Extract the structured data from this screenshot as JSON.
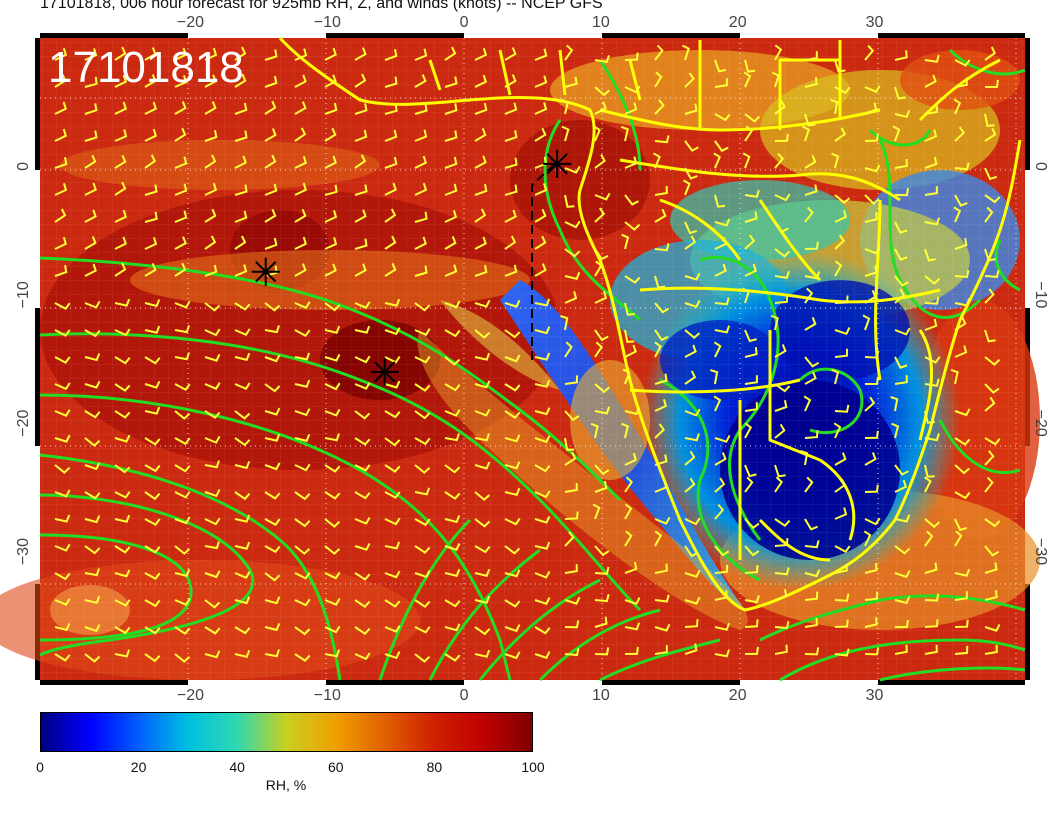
{
  "title": "17101818, 006 hour forecast for 925mb RH, Z, and winds (knots) -- NCEP GFS",
  "stamp": "17101818",
  "map": {
    "lon_range": [
      -31,
      41
    ],
    "lat_range": [
      -40,
      10
    ],
    "lon_ticks": [
      -20,
      -10,
      0,
      10,
      20,
      30
    ],
    "lat_ticks": [
      0,
      -10,
      -20,
      -30
    ],
    "lon_tick_labels": [
      "−20",
      "−10",
      "0",
      "10",
      "20",
      "30"
    ],
    "lat_tick_labels": [
      "0",
      "−10",
      "−20",
      "−30"
    ],
    "markers": [
      {
        "lon": -14.5,
        "lat": -8.2,
        "symbol": "asterisk"
      },
      {
        "lon": -5.8,
        "lat": -16.0,
        "symbol": "asterisk"
      },
      {
        "lon": 6.8,
        "lat": 0.2,
        "symbol": "asterisk"
      }
    ]
  },
  "colorbar": {
    "title": "RH, %",
    "min": 0,
    "max": 100,
    "tick_values": [
      0,
      20,
      40,
      60,
      80,
      100
    ],
    "tick_labels": [
      "0",
      "20",
      "40",
      "60",
      "80",
      "100"
    ],
    "colors": [
      "#000080",
      "#0000ff",
      "#0060ff",
      "#00c0e0",
      "#30d8b0",
      "#c8d020",
      "#f0a000",
      "#e06000",
      "#d02000",
      "#c00000",
      "#800000"
    ]
  },
  "colors": {
    "contour": "#22dd22",
    "coastline": "#ffff00",
    "wind_barb": "#ffff33",
    "grid": "#ffffff",
    "marker": "#000000"
  }
}
